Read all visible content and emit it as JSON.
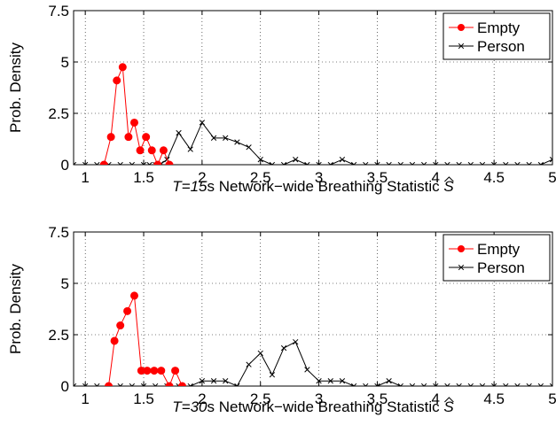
{
  "chart_data": [
    {
      "type": "line",
      "xlabel_italic": "T",
      "xlabel_italic_value": "=15",
      "xlabel_rest": "s Network−wide Breathing Statistic ",
      "xlabel_symbol": "S",
      "ylabel": "Prob. Density",
      "xlim": [
        0.9,
        5
      ],
      "ylim": [
        0,
        7.5
      ],
      "xticks": [
        "1",
        "1.5",
        "2",
        "2.5",
        "3",
        "3.5",
        "4",
        "4.5",
        "5"
      ],
      "xtick_values": [
        1,
        1.5,
        2,
        2.5,
        3,
        3.5,
        4,
        4.5,
        5
      ],
      "yticks": [
        "0",
        "2.5",
        "5",
        "7.5"
      ],
      "ytick_values": [
        0,
        2.5,
        5,
        7.5
      ],
      "grid": "dotted",
      "legend_position": "top-right",
      "series": [
        {
          "name": "Empty",
          "color": "#ff0000",
          "marker": "dot",
          "x": [
            1.16,
            1.22,
            1.27,
            1.32,
            1.37,
            1.42,
            1.47,
            1.52,
            1.57,
            1.62,
            1.67,
            1.72
          ],
          "y": [
            0,
            1.35,
            4.1,
            4.75,
            1.35,
            2.05,
            0.7,
            1.35,
            0.7,
            0,
            0.7,
            0
          ]
        },
        {
          "name": "Person",
          "color": "#000000",
          "marker": "x",
          "x": [
            0.9,
            1.0,
            1.1,
            1.2,
            1.3,
            1.4,
            1.5,
            1.55,
            1.6,
            1.65,
            1.7,
            1.8,
            1.9,
            2.0,
            2.1,
            2.2,
            2.3,
            2.4,
            2.5,
            2.6,
            2.7,
            2.8,
            2.9,
            3.0,
            3.1,
            3.2,
            3.3,
            3.4,
            3.5,
            3.6,
            3.7,
            3.8,
            3.9,
            4.0,
            4.1,
            4.2,
            4.3,
            4.4,
            4.5,
            4.6,
            4.7,
            4.8,
            4.9,
            5.0
          ],
          "y": [
            0,
            0,
            0,
            0,
            0,
            0,
            0,
            0,
            0,
            0.05,
            0.25,
            1.55,
            0.75,
            2.05,
            1.3,
            1.3,
            1.1,
            0.85,
            0.25,
            0,
            0,
            0.25,
            0,
            0,
            0,
            0.25,
            0,
            0,
            0,
            0,
            0,
            0,
            0,
            0,
            0,
            0,
            0,
            0,
            0,
            0,
            0,
            0,
            0,
            0.25
          ]
        }
      ]
    },
    {
      "type": "line",
      "xlabel_italic": "T",
      "xlabel_italic_value": "=30",
      "xlabel_rest": "s Network−wide Breathing Statistic ",
      "xlabel_symbol": "S",
      "ylabel": "Prob. Density",
      "xlim": [
        0.9,
        5
      ],
      "ylim": [
        0,
        7.5
      ],
      "xticks": [
        "1",
        "1.5",
        "2",
        "2.5",
        "3",
        "3.5",
        "4",
        "4.5",
        "5"
      ],
      "xtick_values": [
        1,
        1.5,
        2,
        2.5,
        3,
        3.5,
        4,
        4.5,
        5
      ],
      "yticks": [
        "0",
        "2.5",
        "5",
        "7.5"
      ],
      "ytick_values": [
        0,
        2.5,
        5,
        7.5
      ],
      "grid": "dotted",
      "legend_position": "top-right",
      "series": [
        {
          "name": "Empty",
          "color": "#ff0000",
          "marker": "dot",
          "x": [
            1.2,
            1.25,
            1.3,
            1.36,
            1.42,
            1.48,
            1.53,
            1.59,
            1.65,
            1.72,
            1.77,
            1.83
          ],
          "y": [
            0,
            2.2,
            2.95,
            3.65,
            4.4,
            0.75,
            0.75,
            0.75,
            0.75,
            0,
            0.75,
            0
          ]
        },
        {
          "name": "Person",
          "color": "#000000",
          "marker": "x",
          "x": [
            0.9,
            1.0,
            1.1,
            1.2,
            1.3,
            1.4,
            1.5,
            1.6,
            1.7,
            1.8,
            1.9,
            2.0,
            2.1,
            2.2,
            2.3,
            2.4,
            2.5,
            2.6,
            2.7,
            2.8,
            2.9,
            3.0,
            3.1,
            3.2,
            3.3,
            3.4,
            3.5,
            3.6,
            3.7,
            3.8,
            3.9,
            4.0,
            4.1,
            4.2,
            4.3,
            4.4,
            4.5,
            4.6,
            4.7,
            4.8,
            4.9,
            5.0
          ],
          "y": [
            0,
            0,
            0,
            0,
            0,
            0,
            0,
            0,
            0,
            0,
            0,
            0.25,
            0.25,
            0.25,
            0,
            1.05,
            1.6,
            0.55,
            1.85,
            2.15,
            0.8,
            0.25,
            0.25,
            0.25,
            0,
            0,
            0,
            0.25,
            0,
            0,
            0,
            0,
            0,
            0,
            0,
            0,
            0,
            0,
            0,
            0,
            0,
            0
          ]
        }
      ]
    }
  ]
}
